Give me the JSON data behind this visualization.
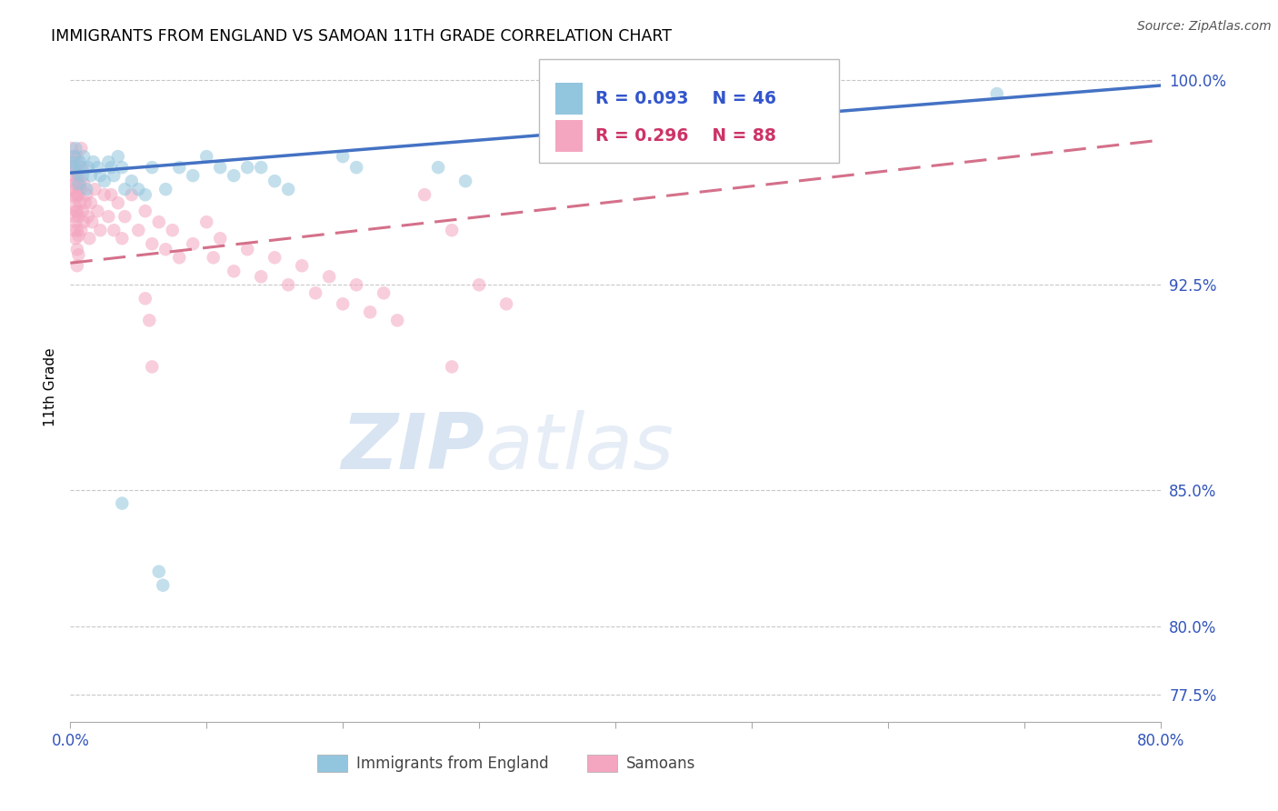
{
  "title": "IMMIGRANTS FROM ENGLAND VS SAMOAN 11TH GRADE CORRELATION CHART",
  "source": "Source: ZipAtlas.com",
  "xlabel_label": "Immigrants from England",
  "ylabel_label": "11th Grade",
  "watermark_zip": "ZIP",
  "watermark_atlas": "atlas",
  "xlim": [
    0.0,
    0.8
  ],
  "ylim": [
    0.765,
    1.01
  ],
  "xticks": [
    0.0,
    0.1,
    0.2,
    0.3,
    0.4,
    0.5,
    0.6,
    0.7,
    0.8
  ],
  "xtick_labels": [
    "0.0%",
    "",
    "",
    "",
    "",
    "",
    "",
    "",
    "80.0%"
  ],
  "yticks": [
    0.775,
    0.8,
    0.85,
    0.925,
    1.0
  ],
  "ytick_labels": [
    "77.5%",
    "80.0%",
    "85.0%",
    "92.5%",
    "100.0%"
  ],
  "legend_blue_R": "R = 0.093",
  "legend_blue_N": "N = 46",
  "legend_pink_R": "R = 0.296",
  "legend_pink_N": "N = 88",
  "blue_color": "#92c5de",
  "pink_color": "#f4a6c0",
  "blue_line_color": "#4472c4",
  "pink_line_color": "#d4708a",
  "grid_color": "#c8c8c8",
  "blue_points": [
    [
      0.001,
      0.97
    ],
    [
      0.002,
      0.968
    ],
    [
      0.003,
      0.972
    ],
    [
      0.004,
      0.975
    ],
    [
      0.005,
      0.966
    ],
    [
      0.006,
      0.962
    ],
    [
      0.007,
      0.97
    ],
    [
      0.008,
      0.968
    ],
    [
      0.009,
      0.965
    ],
    [
      0.01,
      0.972
    ],
    [
      0.012,
      0.96
    ],
    [
      0.013,
      0.968
    ],
    [
      0.015,
      0.965
    ],
    [
      0.017,
      0.97
    ],
    [
      0.02,
      0.968
    ],
    [
      0.022,
      0.965
    ],
    [
      0.025,
      0.963
    ],
    [
      0.028,
      0.97
    ],
    [
      0.03,
      0.968
    ],
    [
      0.032,
      0.965
    ],
    [
      0.035,
      0.972
    ],
    [
      0.038,
      0.968
    ],
    [
      0.04,
      0.96
    ],
    [
      0.045,
      0.963
    ],
    [
      0.05,
      0.96
    ],
    [
      0.055,
      0.958
    ],
    [
      0.06,
      0.968
    ],
    [
      0.07,
      0.96
    ],
    [
      0.08,
      0.968
    ],
    [
      0.09,
      0.965
    ],
    [
      0.1,
      0.972
    ],
    [
      0.11,
      0.968
    ],
    [
      0.12,
      0.965
    ],
    [
      0.13,
      0.968
    ],
    [
      0.14,
      0.968
    ],
    [
      0.15,
      0.963
    ],
    [
      0.16,
      0.96
    ],
    [
      0.2,
      0.972
    ],
    [
      0.21,
      0.968
    ],
    [
      0.27,
      0.968
    ],
    [
      0.29,
      0.963
    ],
    [
      0.038,
      0.845
    ],
    [
      0.065,
      0.82
    ],
    [
      0.068,
      0.815
    ],
    [
      0.68,
      0.995
    ],
    [
      0.55,
      0.998
    ]
  ],
  "pink_points": [
    [
      0.001,
      0.975
    ],
    [
      0.001,
      0.968
    ],
    [
      0.002,
      0.97
    ],
    [
      0.002,
      0.965
    ],
    [
      0.002,
      0.96
    ],
    [
      0.003,
      0.972
    ],
    [
      0.003,
      0.968
    ],
    [
      0.003,
      0.962
    ],
    [
      0.003,
      0.958
    ],
    [
      0.003,
      0.954
    ],
    [
      0.003,
      0.95
    ],
    [
      0.003,
      0.945
    ],
    [
      0.004,
      0.968
    ],
    [
      0.004,
      0.962
    ],
    [
      0.004,
      0.957
    ],
    [
      0.004,
      0.952
    ],
    [
      0.004,
      0.948
    ],
    [
      0.004,
      0.942
    ],
    [
      0.005,
      0.972
    ],
    [
      0.005,
      0.965
    ],
    [
      0.005,
      0.958
    ],
    [
      0.005,
      0.952
    ],
    [
      0.005,
      0.945
    ],
    [
      0.005,
      0.938
    ],
    [
      0.005,
      0.932
    ],
    [
      0.006,
      0.965
    ],
    [
      0.006,
      0.958
    ],
    [
      0.006,
      0.95
    ],
    [
      0.006,
      0.943
    ],
    [
      0.006,
      0.936
    ],
    [
      0.007,
      0.962
    ],
    [
      0.007,
      0.955
    ],
    [
      0.008,
      0.975
    ],
    [
      0.008,
      0.96
    ],
    [
      0.008,
      0.945
    ],
    [
      0.009,
      0.968
    ],
    [
      0.009,
      0.952
    ],
    [
      0.01,
      0.962
    ],
    [
      0.01,
      0.948
    ],
    [
      0.011,
      0.955
    ],
    [
      0.012,
      0.958
    ],
    [
      0.013,
      0.95
    ],
    [
      0.014,
      0.942
    ],
    [
      0.015,
      0.955
    ],
    [
      0.016,
      0.948
    ],
    [
      0.018,
      0.96
    ],
    [
      0.02,
      0.952
    ],
    [
      0.022,
      0.945
    ],
    [
      0.025,
      0.958
    ],
    [
      0.028,
      0.95
    ],
    [
      0.03,
      0.958
    ],
    [
      0.032,
      0.945
    ],
    [
      0.035,
      0.955
    ],
    [
      0.038,
      0.942
    ],
    [
      0.04,
      0.95
    ],
    [
      0.045,
      0.958
    ],
    [
      0.05,
      0.945
    ],
    [
      0.055,
      0.952
    ],
    [
      0.06,
      0.94
    ],
    [
      0.065,
      0.948
    ],
    [
      0.07,
      0.938
    ],
    [
      0.075,
      0.945
    ],
    [
      0.08,
      0.935
    ],
    [
      0.09,
      0.94
    ],
    [
      0.1,
      0.948
    ],
    [
      0.105,
      0.935
    ],
    [
      0.11,
      0.942
    ],
    [
      0.12,
      0.93
    ],
    [
      0.13,
      0.938
    ],
    [
      0.14,
      0.928
    ],
    [
      0.15,
      0.935
    ],
    [
      0.16,
      0.925
    ],
    [
      0.17,
      0.932
    ],
    [
      0.18,
      0.922
    ],
    [
      0.19,
      0.928
    ],
    [
      0.2,
      0.918
    ],
    [
      0.21,
      0.925
    ],
    [
      0.22,
      0.915
    ],
    [
      0.23,
      0.922
    ],
    [
      0.24,
      0.912
    ],
    [
      0.26,
      0.958
    ],
    [
      0.28,
      0.945
    ],
    [
      0.3,
      0.925
    ],
    [
      0.32,
      0.918
    ],
    [
      0.055,
      0.92
    ],
    [
      0.058,
      0.912
    ],
    [
      0.06,
      0.895
    ],
    [
      0.28,
      0.895
    ]
  ]
}
